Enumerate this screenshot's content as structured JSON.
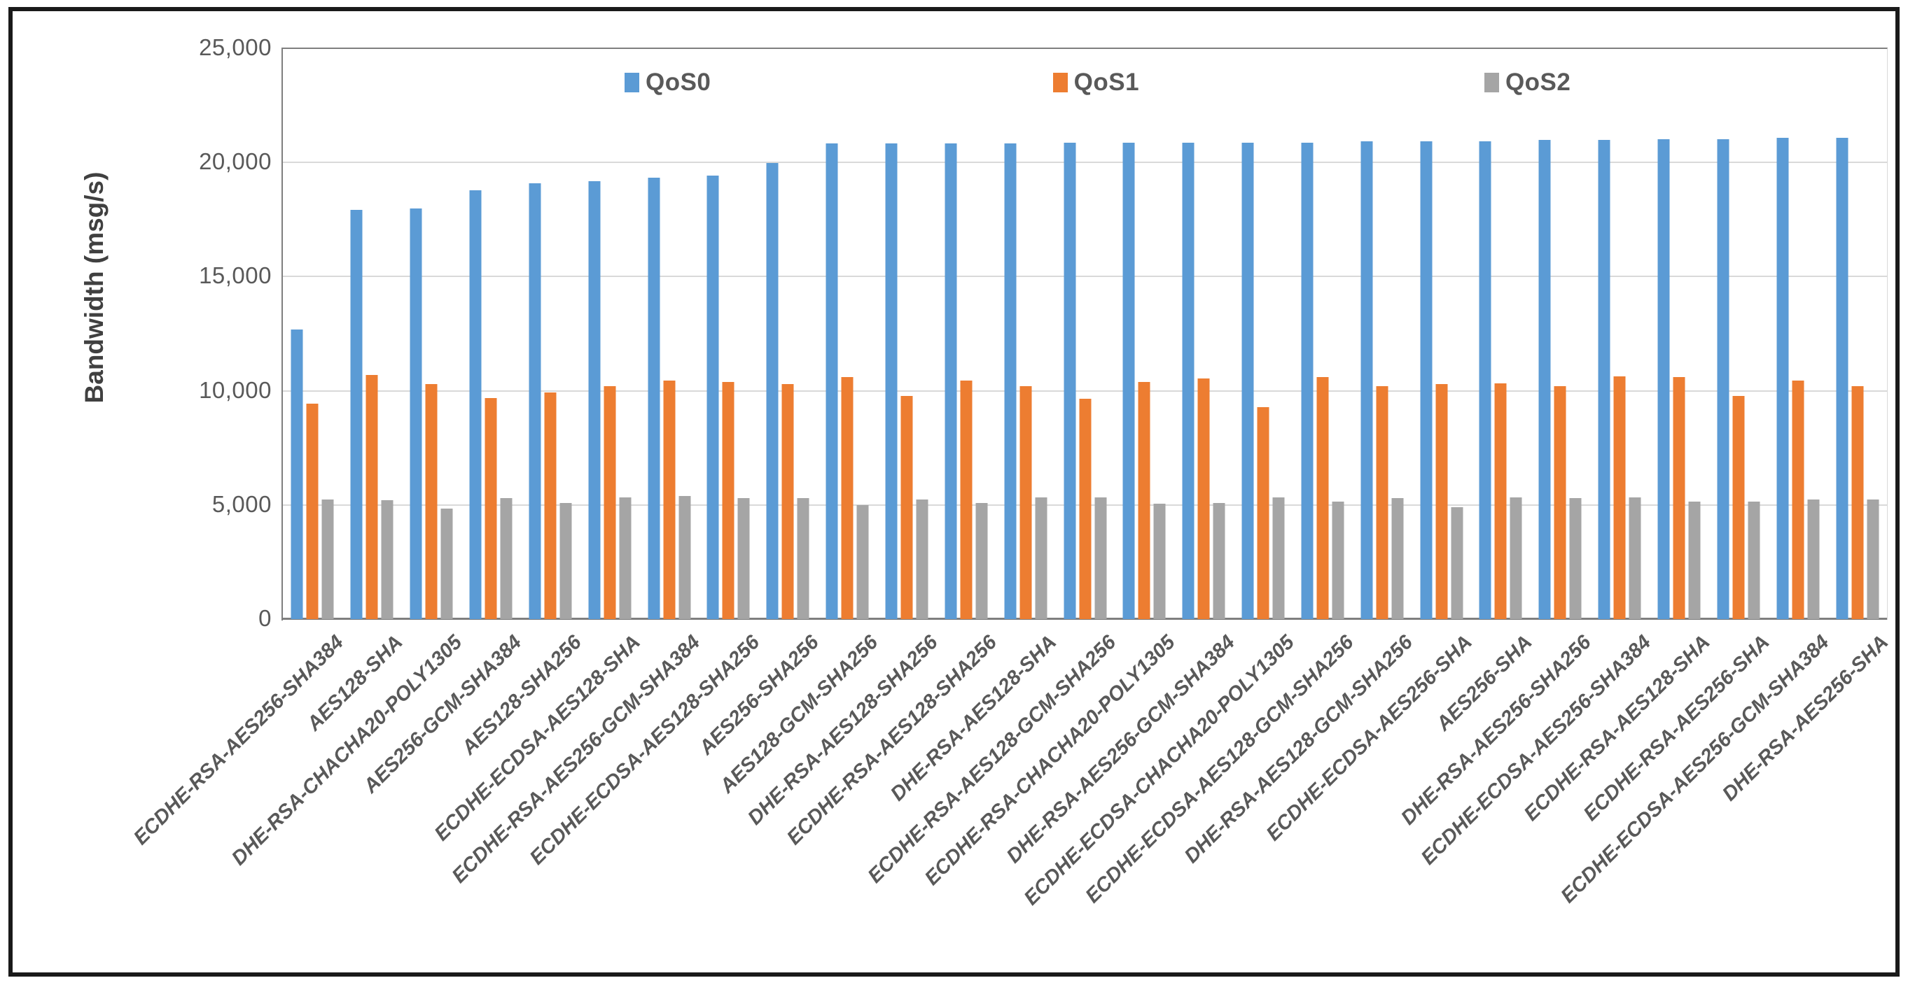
{
  "chart_data": {
    "type": "bar",
    "title": "",
    "xlabel": "",
    "ylabel": "Bandwidth (msg/s)",
    "ylim": [
      0,
      25000
    ],
    "yticks": [
      0,
      5000,
      10000,
      15000,
      20000,
      25000
    ],
    "ytick_labels": [
      "0",
      "5,000",
      "10,000",
      "15,000",
      "20,000",
      "25,000"
    ],
    "grid": true,
    "legend_position": "top-inside",
    "categories": [
      "ECDHE-RSA-AES256-SHA384",
      "AES128-SHA",
      "DHE-RSA-CHACHA20-POLY1305",
      "AES256-GCM-SHA384",
      "AES128-SHA256",
      "ECDHE-ECDSA-AES128-SHA",
      "ECDHE-RSA-AES256-GCM-SHA384",
      "ECDHE-ECDSA-AES128-SHA256",
      "AES256-SHA256",
      "AES128-GCM-SHA256",
      "DHE-RSA-AES128-SHA256",
      "ECDHE-RSA-AES128-SHA256",
      "DHE-RSA-AES128-SHA",
      "ECDHE-RSA-AES128-GCM-SHA256",
      "ECDHE-RSA-CHACHA20-POLY1305",
      "DHE-RSA-AES256-GCM-SHA384",
      "ECDHE-ECDSA-CHACHA20-POLY1305",
      "ECDHE-ECDSA-AES128-GCM-SHA256",
      "DHE-RSA-AES128-GCM-SHA256",
      "ECDHE-ECDSA-AES256-SHA",
      "AES256-SHA",
      "DHE-RSA-AES256-SHA256",
      "ECDHE-ECDSA-AES256-SHA384",
      "ECDHE-RSA-AES128-SHA",
      "ECDHE-RSA-AES256-SHA",
      "ECDHE-ECDSA-AES256-GCM-SHA384",
      "DHE-RSA-AES256-SHA"
    ],
    "series": [
      {
        "name": "QoS0",
        "color": "#5B9BD5",
        "values": [
          12700,
          17950,
          18000,
          18800,
          19100,
          19200,
          19350,
          19450,
          20000,
          20850,
          20850,
          20850,
          20850,
          20900,
          20900,
          20900,
          20900,
          20900,
          20950,
          20950,
          20950,
          21000,
          21000,
          21050,
          21050,
          21100,
          21100
        ]
      },
      {
        "name": "QoS1",
        "color": "#ED7D31",
        "values": [
          9450,
          10700,
          10300,
          9700,
          9950,
          10200,
          10450,
          10400,
          10300,
          10600,
          9800,
          10450,
          10200,
          9650,
          10400,
          10550,
          9300,
          10600,
          10200,
          10300,
          10350,
          10200,
          10650,
          10600,
          9800,
          10450,
          10200
        ]
      },
      {
        "name": "QoS2",
        "color": "#A5A5A5",
        "values": [
          5250,
          5200,
          4850,
          5300,
          5100,
          5350,
          5400,
          5300,
          5300,
          5000,
          5250,
          5100,
          5350,
          5350,
          5050,
          5100,
          5350,
          5150,
          5300,
          4900,
          5350,
          5300,
          5350,
          5150,
          5150,
          5250,
          5250
        ]
      }
    ],
    "legend_labels": [
      "QoS0",
      "QoS1",
      "QoS2"
    ]
  },
  "colors": {
    "grid": "#d9d9d9",
    "axis": "#7f7f7f",
    "tick_text": "#595959",
    "frame_border": "#1a1a1a"
  }
}
